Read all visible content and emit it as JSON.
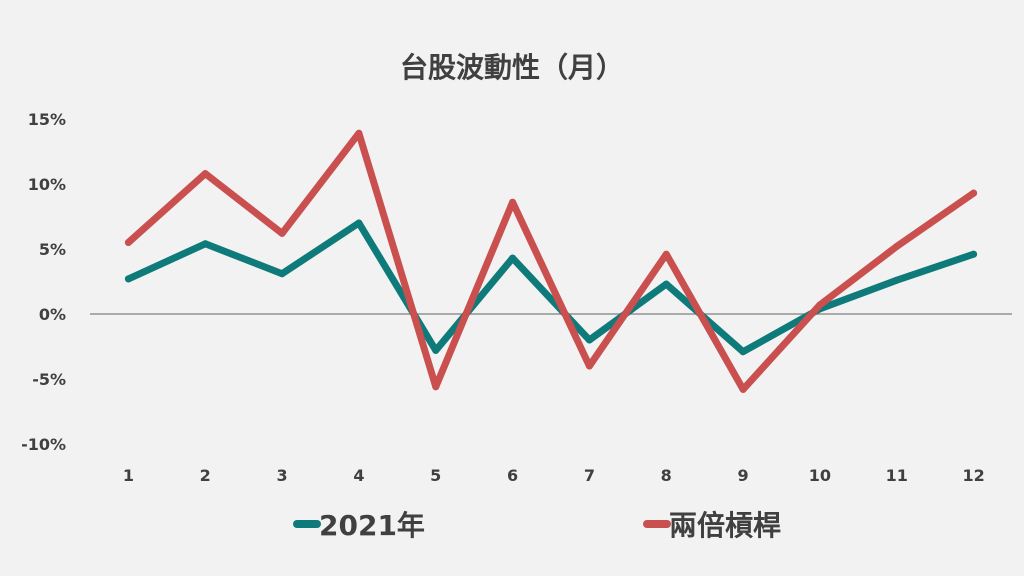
{
  "chart_data": {
    "type": "line",
    "title": "台股波動性（月）",
    "xlabel": "",
    "ylabel": "",
    "categories": [
      "1",
      "2",
      "3",
      "4",
      "5",
      "6",
      "7",
      "8",
      "9",
      "10",
      "11",
      "12"
    ],
    "y_ticks": [
      "15%",
      "10%",
      "5%",
      "0%",
      "-5%",
      "-10%"
    ],
    "ylim": [
      -10,
      15
    ],
    "grid": false,
    "legend_position": "bottom",
    "series": [
      {
        "name": "2021年",
        "color": "#0f7a7a",
        "values": [
          2.7,
          5.4,
          3.1,
          7.0,
          -2.8,
          4.3,
          -2.0,
          2.3,
          -2.9,
          0.4,
          2.6,
          4.6
        ]
      },
      {
        "name": "兩倍槓桿",
        "color": "#c9504f",
        "values": [
          5.5,
          10.8,
          6.2,
          13.9,
          -5.6,
          8.6,
          -4.0,
          4.6,
          -5.8,
          0.7,
          5.2,
          9.3
        ]
      }
    ]
  }
}
